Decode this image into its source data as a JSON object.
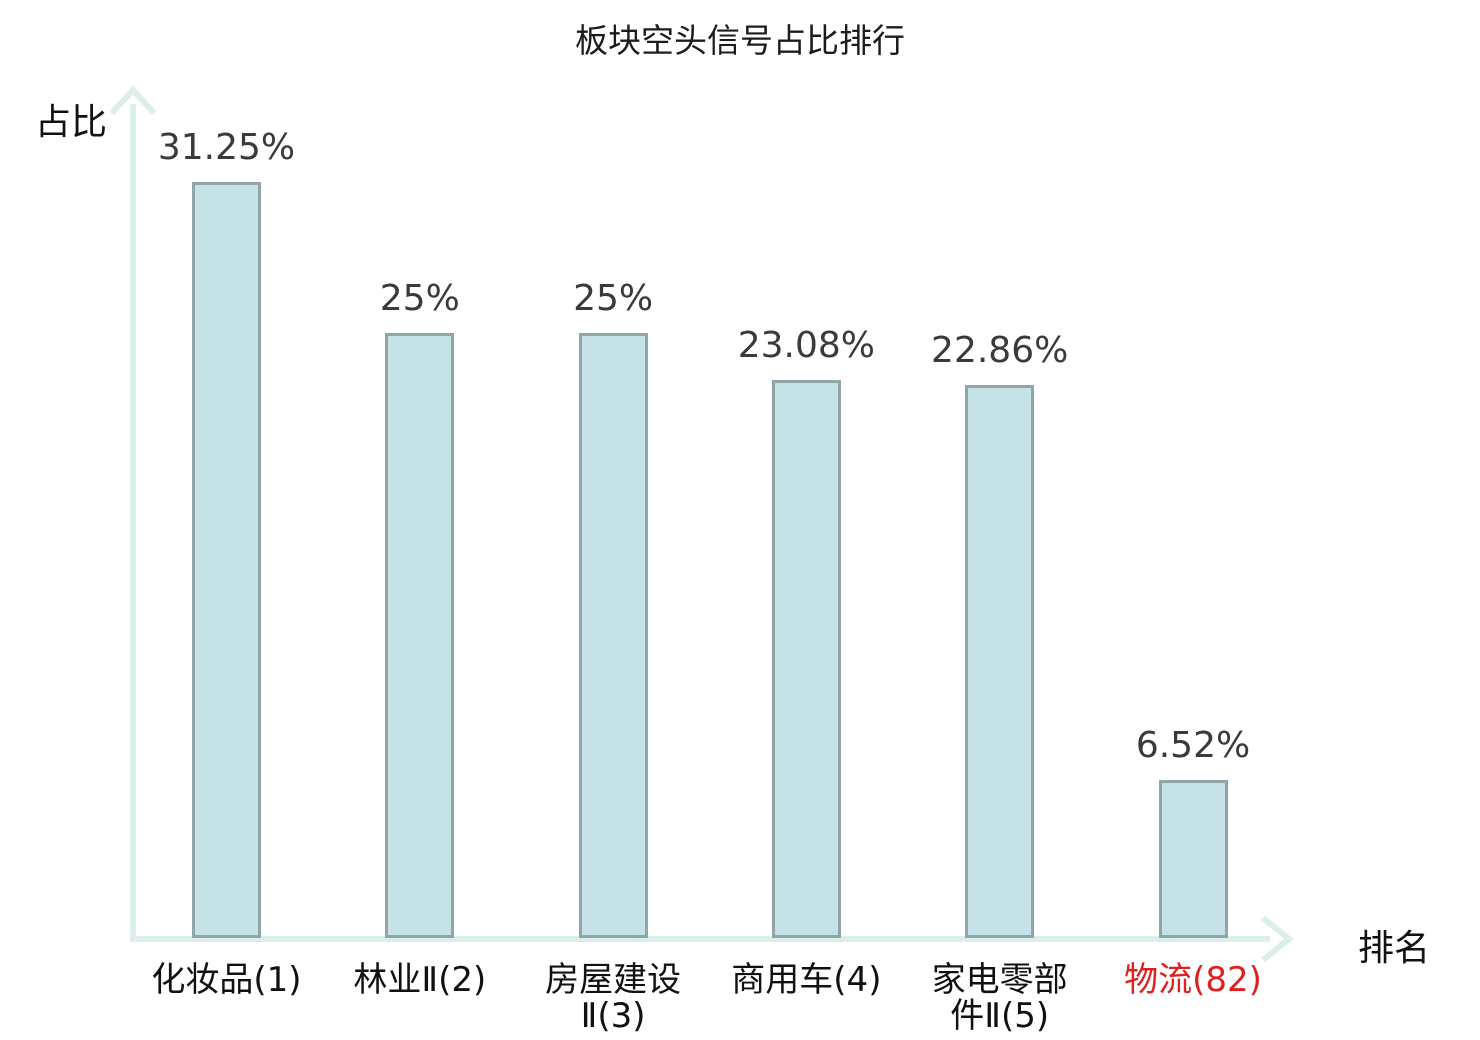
{
  "chart_data": {
    "type": "bar",
    "title": "板块空头信号占比排行",
    "xlabel": "排名",
    "ylabel": "占比",
    "categories": [
      "化妆品(1)",
      "林业Ⅱ(2)",
      "房屋建设Ⅱ(3)",
      "商用车(4)",
      "家电零部件Ⅱ(5)",
      "物流(82)"
    ],
    "category_lines": [
      [
        "化妆品(1)"
      ],
      [
        "林业Ⅱ(2)"
      ],
      [
        "房屋建设",
        "Ⅱ(3)"
      ],
      [
        "商用车(4)"
      ],
      [
        "家电零部",
        "件Ⅱ(5)"
      ],
      [
        "物流(82)"
      ]
    ],
    "values": [
      31.25,
      25,
      25,
      23.08,
      22.86,
      6.52
    ],
    "value_labels": [
      "31.25%",
      "25%",
      "25%",
      "23.08%",
      "22.86%",
      "6.52%"
    ],
    "ylim": [
      0,
      33
    ],
    "grid": false,
    "legend": "none",
    "highlight_index": 5,
    "colors": {
      "bar_fill": "#c5e2e6",
      "bar_border": "#8fa5a8",
      "axis": "#dceeec",
      "value_text": "#3a3a3a",
      "category_text": "#111111",
      "highlight_text": "#e01f1f",
      "title_text": "#1c1c1c"
    }
  }
}
